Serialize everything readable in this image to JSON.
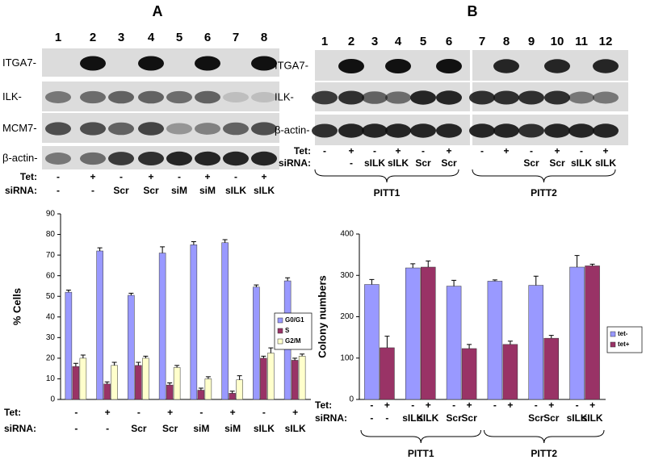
{
  "blots": [
    {
      "panel": "A",
      "lanes": [
        1,
        2,
        3,
        4,
        5,
        6,
        7,
        8
      ],
      "rows": [
        "ITGA7-",
        "ILK-",
        "MCM7-",
        "β-actin-"
      ],
      "tet_title": "Tet:",
      "tet": [
        "-",
        "+",
        "-",
        "+",
        "-",
        "+",
        "-",
        "+"
      ],
      "sirna_title": "siRNA:",
      "sirna": [
        "-",
        "-",
        "Scr",
        "Scr",
        "siM",
        "siM",
        "sILK",
        "sILK"
      ]
    },
    {
      "panel": "B",
      "lanes": [
        1,
        2,
        3,
        4,
        5,
        6,
        7,
        8,
        9,
        10,
        11,
        12
      ],
      "rows": [
        "ITGA7-",
        "ILK-",
        "β-actin-"
      ],
      "tet_title": "Tet:",
      "tet": [
        "-",
        "+",
        "-",
        "+",
        "-",
        "+",
        "-",
        "+",
        "-",
        "+",
        "-",
        "+"
      ],
      "sirna_title": "siRNA:",
      "sirna": [
        null,
        "-",
        "sILK",
        "sILK",
        "Scr",
        "Scr",
        null,
        null,
        "Scr",
        "Scr",
        "sILK",
        "sILK"
      ],
      "groups": [
        "PITT1",
        "PITT2"
      ]
    }
  ],
  "chart_data": [
    {
      "type": "bar",
      "ylabel": "% Cells",
      "categories": [
        "-",
        "-",
        "Scr",
        "Scr",
        "siM",
        "siM",
        "sILK",
        "sILK"
      ],
      "tet_title": "Tet:",
      "tet_labels": [
        "-",
        "+",
        "-",
        "+",
        "-",
        "+",
        "-",
        "+"
      ],
      "sirna_title": "siRNA:",
      "series": [
        {
          "name": "G0/G1",
          "color": "#9999ff",
          "values": [
            52,
            72,
            50.5,
            71,
            75,
            76,
            54.5,
            57.5
          ],
          "errors": [
            1,
            1.5,
            1,
            3,
            1.5,
            1.5,
            1,
            1.5
          ]
        },
        {
          "name": "S",
          "color": "#993366",
          "values": [
            16,
            7.5,
            16.5,
            7,
            4.5,
            3,
            20,
            19
          ],
          "errors": [
            1.5,
            1,
            1.5,
            1,
            1,
            1,
            1,
            1
          ]
        },
        {
          "name": "G2/M",
          "color": "#ffffcc",
          "values": [
            20,
            16.5,
            20,
            15.5,
            10,
            9.5,
            22.5,
            21
          ],
          "errors": [
            1.5,
            1.5,
            1,
            1,
            1,
            2,
            2.5,
            1
          ]
        }
      ],
      "ylim": [
        0,
        90
      ],
      "yticks": [
        0,
        10,
        20,
        30,
        40,
        50,
        60,
        70,
        80,
        90
      ],
      "legend": "right"
    },
    {
      "type": "bar",
      "ylabel": "Colony numbers",
      "categories": [
        null,
        null,
        null,
        null,
        null,
        null
      ],
      "tet_title": "Tet:",
      "tet_labels": [
        "-",
        "+",
        "-",
        "+",
        "-",
        "+",
        "-",
        "+",
        "-",
        "+",
        "-",
        "+"
      ],
      "sirna_title": "siRNA:",
      "sirna_labels": [
        "-",
        "-",
        "sILK",
        "sILK",
        "Scr",
        "Scr",
        null,
        null,
        "Scr",
        "Scr",
        "sILK",
        "sILK"
      ],
      "groups": [
        "PITT1",
        "PITT2"
      ],
      "series": [
        {
          "name": "tet-",
          "color": "#9999ff",
          "values": [
            278,
            318,
            274,
            286,
            276,
            320
          ],
          "errors": [
            12,
            10,
            14,
            3,
            22,
            28
          ]
        },
        {
          "name": "tet+",
          "color": "#993366",
          "values": [
            125,
            320,
            123,
            133,
            148,
            323
          ],
          "errors": [
            28,
            15,
            10,
            8,
            7,
            4
          ]
        }
      ],
      "ylim": [
        0,
        400
      ],
      "yticks": [
        0,
        100,
        200,
        300,
        400
      ],
      "legend": "right"
    }
  ]
}
